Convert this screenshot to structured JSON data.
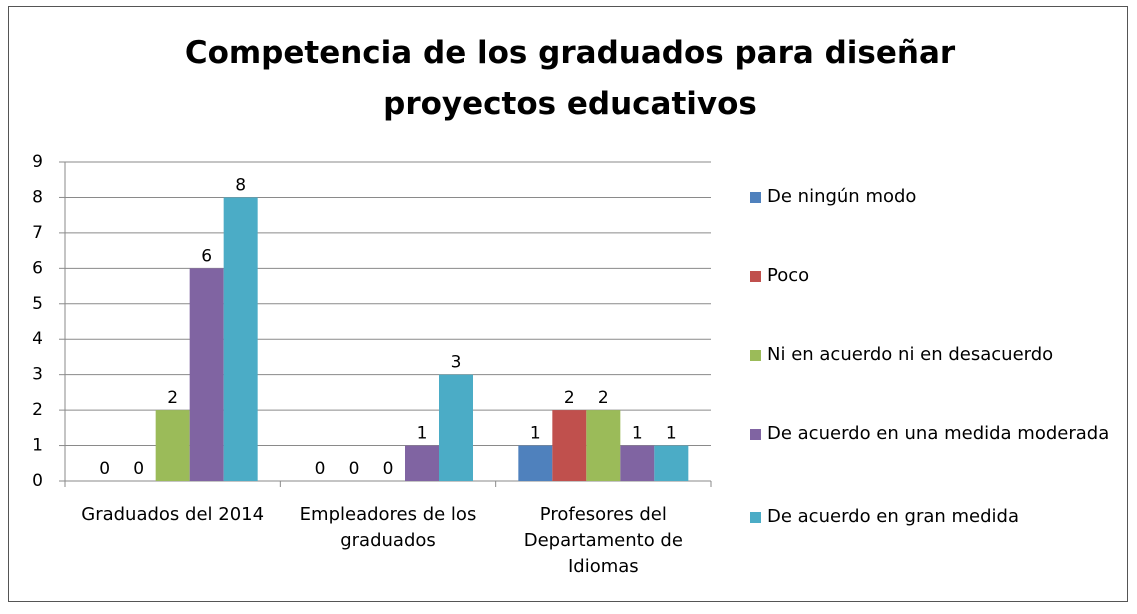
{
  "chart_data": {
    "type": "bar",
    "title": "Competencia de los graduados para diseñar proyectos educativos",
    "categories": [
      "Graduados del 2014",
      "Empleadores de los graduados",
      "Profesores del Departamento de Idiomas"
    ],
    "series": [
      {
        "name": "De ningún modo",
        "color": "#4f81bd",
        "values": [
          0,
          0,
          1
        ]
      },
      {
        "name": "Poco",
        "color": "#c0504d",
        "values": [
          0,
          0,
          2
        ]
      },
      {
        "name": "Ni en acuerdo ni en desacuerdo",
        "color": "#9bbb59",
        "values": [
          2,
          0,
          2
        ]
      },
      {
        "name": "De acuerdo en una medida moderada",
        "color": "#8064a2",
        "values": [
          6,
          1,
          1
        ]
      },
      {
        "name": "De acuerdo en gran medida",
        "color": "#4bacc6",
        "values": [
          8,
          3,
          1
        ]
      }
    ],
    "ylim": [
      0,
      9
    ],
    "yticks": [
      0,
      1,
      2,
      3,
      4,
      5,
      6,
      7,
      8,
      9
    ],
    "grid": true,
    "legend": "right"
  }
}
